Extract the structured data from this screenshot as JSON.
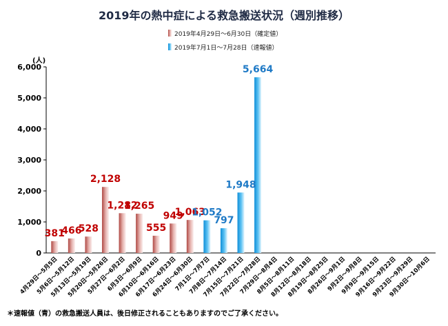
{
  "chart_data": {
    "type": "bar",
    "title": "2019年の熱中症による救急搬送状況（週別推移）",
    "legend": [
      {
        "name": "2019年4月29日～6月30日（確定値）",
        "color": "#c0504d"
      },
      {
        "name": "2019年7月1日～7月28日（速報値）",
        "color": "#1ea0e6"
      }
    ],
    "legend_position": "top-center",
    "ylabel": "(人)",
    "ylim": [
      0,
      6000
    ],
    "yticks": [
      "0",
      "1,000",
      "2,000",
      "3,000",
      "4,000",
      "5,000",
      "6,000"
    ],
    "categories": [
      "4月29日～5月5日",
      "5月6日～5月12日",
      "5月13日～5月19日",
      "5月20日～5月26日",
      "5月27日～6月2日",
      "6月3日～6月9日",
      "6月10日～6月16日",
      "6月17日～6月23日",
      "6月24日～6月30日",
      "7月1日～7月7日",
      "7月8日～7月14日",
      "7月15日～7月21日",
      "7月22日～7月28日",
      "7月29日～8月4日",
      "8月5日～8月11日",
      "8月12日～8月18日",
      "8月19日～8月25日",
      "8月26日～9月1日",
      "9月2日～9月8日",
      "9月9日～9月15日",
      "9月16日～9月22日",
      "9月23日～9月29日",
      "9月30日～10月6日"
    ],
    "series": [
      {
        "name": "確定値",
        "color": "#c0504d",
        "values": [
          381,
          466,
          528,
          2128,
          1282,
          1265,
          555,
          949,
          1063,
          null,
          null,
          null,
          null,
          null,
          null,
          null,
          null,
          null,
          null,
          null,
          null,
          null,
          null
        ]
      },
      {
        "name": "速報値",
        "color": "#1ea0e6",
        "values": [
          null,
          null,
          null,
          null,
          null,
          null,
          null,
          null,
          null,
          1052,
          797,
          1948,
          5664,
          null,
          null,
          null,
          null,
          null,
          null,
          null,
          null,
          null,
          null
        ]
      }
    ],
    "data_labels": [
      "381",
      "466",
      "528",
      "2,128",
      "1,282",
      "1,265",
      "555",
      "949",
      "1,063",
      "1,052",
      "797",
      "1,948",
      "5,664"
    ],
    "note": "＊速報値（青）の救急搬送人員は、後日修正されることもありますのでご了承ください。"
  }
}
